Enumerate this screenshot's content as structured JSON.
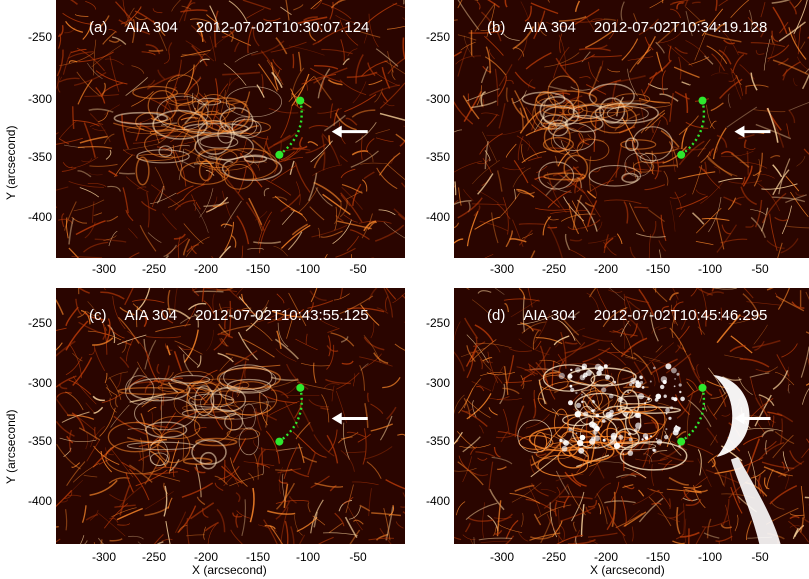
{
  "panels": [
    {
      "label": "(a)",
      "instrument": "AIA 304",
      "timestamp": "2012-07-02T10:30:07.124",
      "intensity": "moderate"
    },
    {
      "label": "(b)",
      "instrument": "AIA 304",
      "timestamp": "2012-07-02T10:34:19.128",
      "intensity": "moderate"
    },
    {
      "label": "(c)",
      "instrument": "AIA 304",
      "timestamp": "2012-07-02T10:43:55.125",
      "intensity": "moderate"
    },
    {
      "label": "(d)",
      "instrument": "AIA 304",
      "timestamp": "2012-07-02T10:45:46.295",
      "intensity": "flare"
    }
  ],
  "axes": {
    "ylabel": "Y (arcsecond)",
    "xlabel": "X (arcsecond)",
    "yticks": [
      "-250",
      "-300",
      "-350",
      "-400"
    ],
    "xticks": [
      "-300",
      "-250",
      "-200",
      "-150",
      "-100",
      "-50"
    ]
  },
  "colors": {
    "background": "#2a0500",
    "bright": "#ff8a2a",
    "marker": "#2ee82e",
    "arrow": "#ffffff"
  }
}
